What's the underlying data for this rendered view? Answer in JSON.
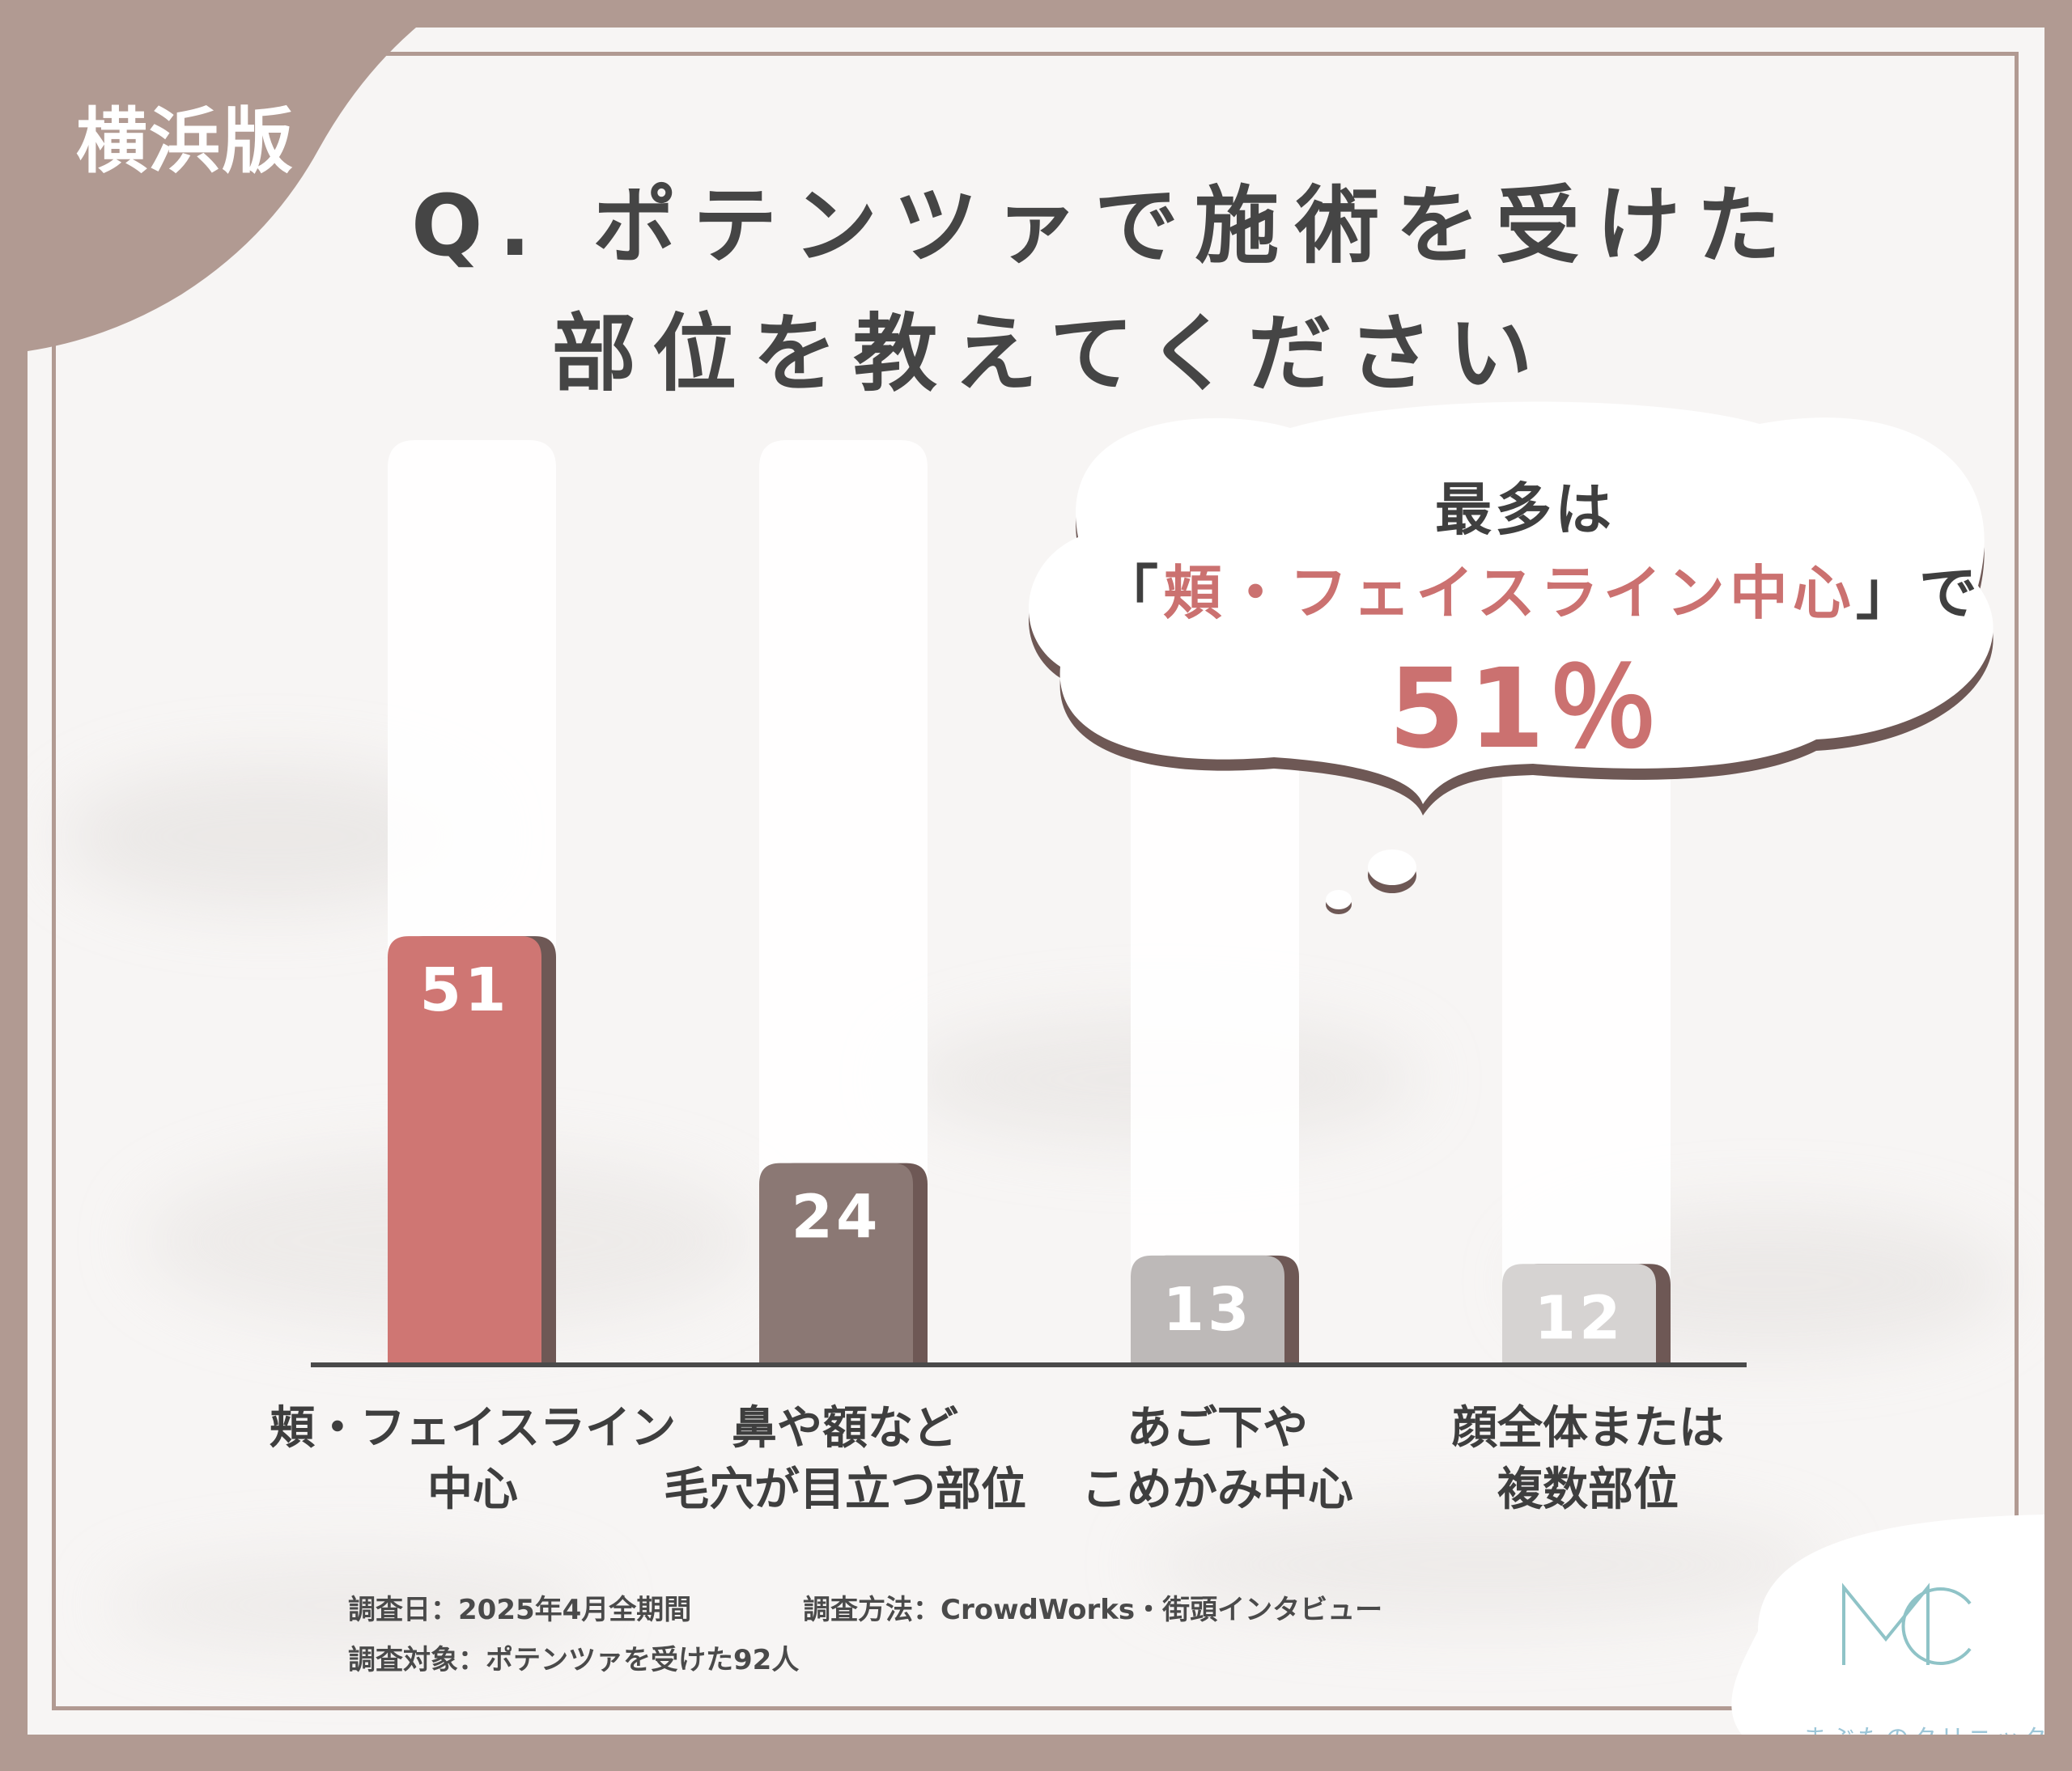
{
  "header": {
    "region": "横浜版",
    "title_line1": "Q. ポテンツァで施術を受けた",
    "title_line2": "部位を教えてください"
  },
  "callout": {
    "line1": "最多は",
    "bracket_open": "「",
    "highlight": "頬・フェイスライン中心",
    "bracket_close": "」",
    "suffix": "で",
    "big_value": "51％"
  },
  "chart_data": {
    "type": "bar",
    "title": "",
    "categories": [
      [
        "頬・フェイスライン",
        "中心"
      ],
      [
        "鼻や額など",
        "毛穴が目立つ部位"
      ],
      [
        "あご下や",
        "こめかみ中心"
      ],
      [
        "顔全体または",
        "複数部位"
      ]
    ],
    "values": [
      51,
      24,
      13,
      12
    ],
    "value_labels": [
      "51",
      "24",
      "13",
      "12"
    ],
    "colors": [
      "#cf7673",
      "#8b7874",
      "#bdb9b8",
      "#d6d3d2"
    ],
    "ylim": [
      0,
      110
    ],
    "grid": false,
    "legend": "none"
  },
  "footnotes": {
    "date": "調査日：2025年4月全期間",
    "method": "調査方法：CrowdWorks・街頭インタビュー",
    "target": "調査対象：ポテンツァを受けた92人"
  },
  "logo": {
    "mark": "MC",
    "name": "まぶたのクリニック"
  }
}
